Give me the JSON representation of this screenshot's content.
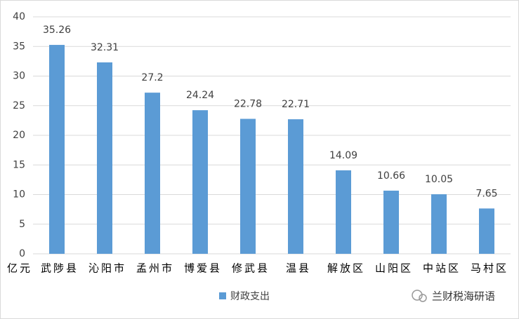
{
  "chart_data": {
    "type": "bar",
    "y_unit": "亿元",
    "categories": [
      "武陟县",
      "沁阳市",
      "孟州市",
      "博爱县",
      "修武县",
      "温县",
      "解放区",
      "山阳区",
      "中站区",
      "马村区"
    ],
    "series": [
      {
        "name": "财政支出",
        "color": "#5b9bd5",
        "values": [
          35.26,
          32.31,
          27.2,
          24.24,
          22.78,
          22.71,
          14.09,
          10.66,
          10.05,
          7.65
        ]
      }
    ],
    "ylim": [
      0,
      40
    ],
    "yticks": [
      0,
      5,
      10,
      15,
      20,
      25,
      30,
      35,
      40
    ],
    "grid": true,
    "legend": "bottom",
    "watermark": "兰财税海研语"
  }
}
